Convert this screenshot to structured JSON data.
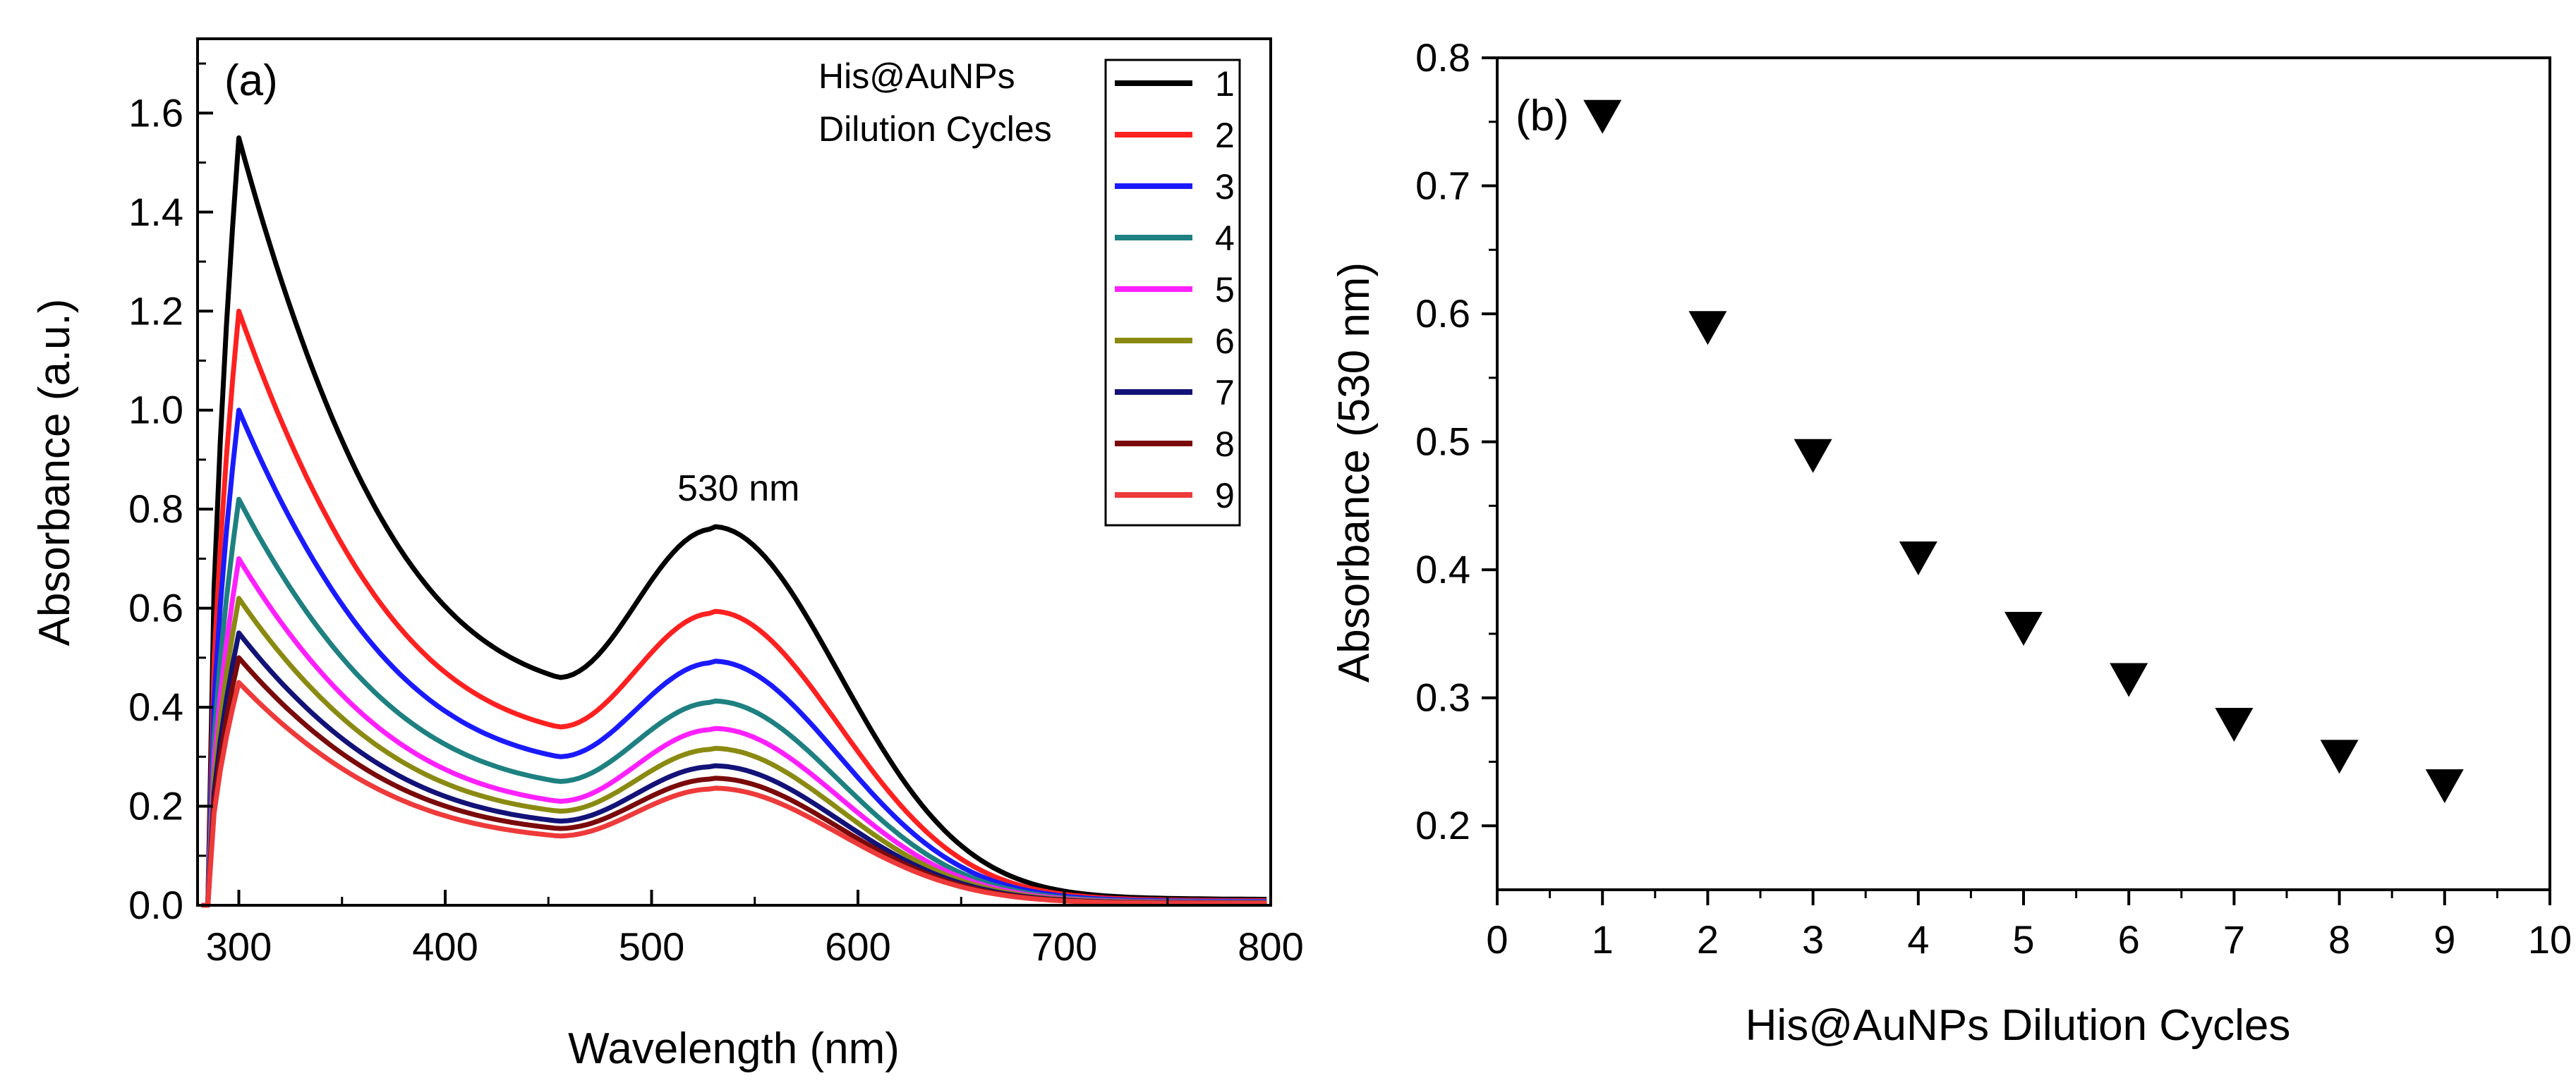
{
  "chart_data": [
    {
      "panel": "(a)",
      "type": "line",
      "xlabel": "Wavelength (nm)",
      "ylabel": "Absorbance (a.u.)",
      "xlim": [
        280,
        800
      ],
      "ylim": [
        0.0,
        1.75
      ],
      "xticks": [
        300,
        400,
        500,
        600,
        700,
        800
      ],
      "yticks": [
        "0.0",
        "0.2",
        "0.4",
        "0.6",
        "0.8",
        "1.0",
        "1.2",
        "1.4",
        "1.6"
      ],
      "legend_title": [
        "His@AuNPs",
        "Dilution Cycles"
      ],
      "annotation": "530 nm",
      "x": [
        282,
        286,
        290,
        295,
        300,
        305,
        310,
        320,
        330,
        340,
        350,
        360,
        370,
        380,
        390,
        400,
        420,
        440,
        460,
        480,
        500,
        510,
        520,
        530,
        540,
        550,
        560,
        570,
        580,
        590,
        600,
        620,
        640,
        660,
        680,
        700,
        720,
        750,
        780,
        800
      ],
      "series": [
        {
          "name": "1",
          "color": "#000000",
          "peak1": 1.55,
          "peak2": 0.76,
          "valley": 0.46
        },
        {
          "name": "2",
          "color": "#ff2020",
          "peak1": 1.2,
          "peak2": 0.59,
          "valley": 0.36
        },
        {
          "name": "3",
          "color": "#1a1aff",
          "peak1": 1.0,
          "peak2": 0.49,
          "valley": 0.3
        },
        {
          "name": "4",
          "color": "#1e8080",
          "peak1": 0.82,
          "peak2": 0.41,
          "valley": 0.25
        },
        {
          "name": "5",
          "color": "#ff20ff",
          "peak1": 0.7,
          "peak2": 0.355,
          "valley": 0.21
        },
        {
          "name": "6",
          "color": "#8a8a12",
          "peak1": 0.62,
          "peak2": 0.315,
          "valley": 0.19
        },
        {
          "name": "7",
          "color": "#121278",
          "peak1": 0.55,
          "peak2": 0.28,
          "valley": 0.17
        },
        {
          "name": "8",
          "color": "#7a0a0a",
          "peak1": 0.5,
          "peak2": 0.255,
          "valley": 0.155
        },
        {
          "name": "9",
          "color": "#ee3a3a",
          "peak1": 0.45,
          "peak2": 0.235,
          "valley": 0.14
        }
      ]
    },
    {
      "panel": "(b)",
      "type": "scatter",
      "marker": "down-triangle",
      "xlabel": "His@AuNPs Dilution Cycles",
      "ylabel": "Absorbance (530 nm)",
      "xlim": [
        0,
        10
      ],
      "ylim": [
        0.15,
        0.8
      ],
      "xticks": [
        "0",
        "1",
        "2",
        "3",
        "4",
        "5",
        "6",
        "7",
        "8",
        "9",
        "10"
      ],
      "yticks": [
        "0.2",
        "0.3",
        "0.4",
        "0.5",
        "0.6",
        "0.7",
        "0.8"
      ],
      "x": [
        1,
        2,
        3,
        4,
        5,
        6,
        7,
        8,
        9
      ],
      "y": [
        0.755,
        0.59,
        0.49,
        0.41,
        0.355,
        0.315,
        0.28,
        0.255,
        0.232
      ]
    }
  ]
}
